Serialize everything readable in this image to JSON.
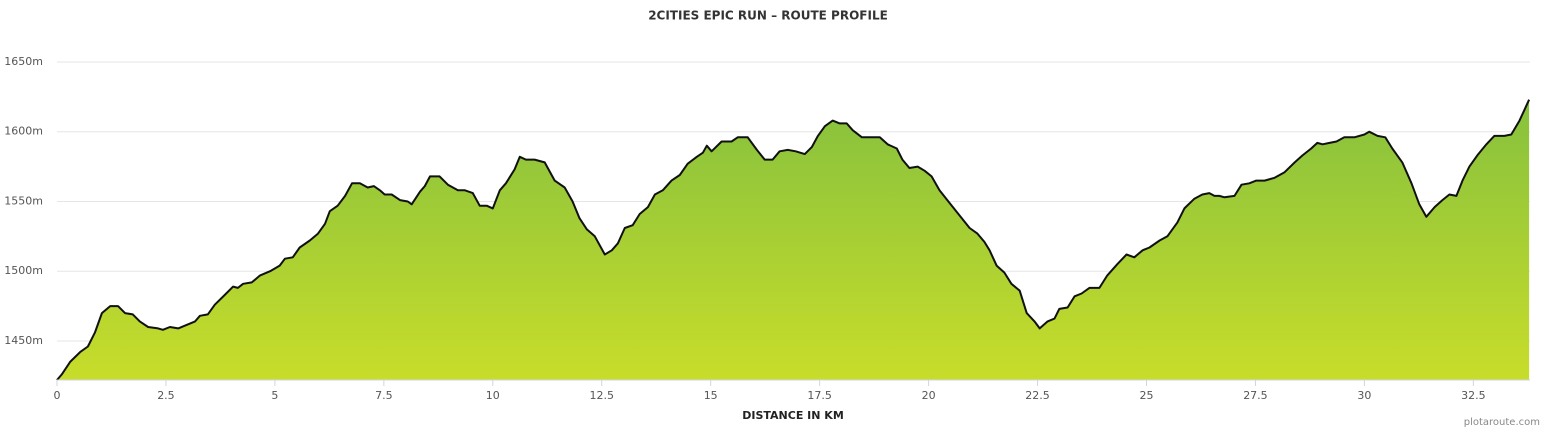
{
  "chart_data": {
    "type": "area",
    "title": "2CITIES EPIC RUN – ROUTE PROFILE",
    "x_label": "DISTANCE IN KM",
    "credit": "plotaroute.com",
    "x": [
      0,
      0.11,
      0.3,
      0.53,
      0.71,
      0.87,
      1.03,
      1.22,
      1.4,
      1.56,
      1.74,
      1.9,
      2.09,
      2.32,
      2.43,
      2.59,
      2.78,
      2.94,
      3.17,
      3.28,
      3.46,
      3.62,
      3.85,
      4.04,
      4.15,
      4.27,
      4.47,
      4.66,
      4.89,
      5.11,
      5.23,
      5.41,
      5.57,
      5.8,
      5.99,
      6.15,
      6.26,
      6.44,
      6.61,
      6.77,
      6.95,
      7.13,
      7.27,
      7.41,
      7.52,
      7.68,
      7.87,
      8.05,
      8.14,
      8.33,
      8.44,
      8.56,
      8.78,
      8.97,
      9.2,
      9.36,
      9.54,
      9.7,
      9.86,
      10,
      10.16,
      10.3,
      10.5,
      10.62,
      10.76,
      10.96,
      11.19,
      11.42,
      11.65,
      11.83,
      11.99,
      12.16,
      12.34,
      12.57,
      12.73,
      12.87,
      13.03,
      13.21,
      13.37,
      13.56,
      13.72,
      13.9,
      14.1,
      14.29,
      14.47,
      14.68,
      14.82,
      14.91,
      15.02,
      15.25,
      15.48,
      15.62,
      15.85,
      16.06,
      16.24,
      16.42,
      16.58,
      16.77,
      16.95,
      17.16,
      17.32,
      17.46,
      17.62,
      17.8,
      17.96,
      18.12,
      18.26,
      18.47,
      18.65,
      18.88,
      19.06,
      19.27,
      19.4,
      19.56,
      19.75,
      19.91,
      20.07,
      20.25,
      20.48,
      20.71,
      20.94,
      21.12,
      21.28,
      21.4,
      21.56,
      21.74,
      21.9,
      22.09,
      22.25,
      22.43,
      22.55,
      22.73,
      22.89,
      23,
      23.19,
      23.35,
      23.51,
      23.69,
      23.92,
      24.1,
      24.33,
      24.54,
      24.72,
      24.91,
      25.07,
      25.3,
      25.48,
      25.71,
      25.87,
      26.1,
      26.28,
      26.44,
      26.56,
      26.67,
      26.79,
      27.02,
      27.18,
      27.36,
      27.52,
      27.71,
      27.94,
      28.17,
      28.4,
      28.58,
      28.78,
      28.92,
      29.04,
      29.2,
      29.36,
      29.54,
      29.77,
      30,
      30.11,
      30.3,
      30.48,
      30.64,
      30.87,
      31.08,
      31.26,
      31.42,
      31.61,
      31.79,
      31.95,
      32.11,
      32.25,
      32.41,
      32.59,
      32.8,
      32.98,
      33.21,
      33.37,
      33.56,
      33.78
    ],
    "values": [
      1422,
      1426,
      1435,
      1442,
      1446,
      1456,
      1470,
      1475,
      1475,
      1470,
      1469,
      1464,
      1460,
      1459,
      1458,
      1460,
      1459,
      1461,
      1464,
      1468,
      1469,
      1476,
      1483,
      1489,
      1488,
      1491,
      1492,
      1497,
      1500,
      1504,
      1509,
      1510,
      1517,
      1522,
      1527,
      1534,
      1543,
      1547,
      1554,
      1563,
      1563,
      1560,
      1561,
      1558,
      1555,
      1555,
      1551,
      1550,
      1548,
      1557,
      1561,
      1568,
      1568,
      1562,
      1558,
      1558,
      1556,
      1547,
      1547,
      1545,
      1558,
      1563,
      1573,
      1582,
      1580,
      1580,
      1578,
      1565,
      1560,
      1550,
      1538,
      1530,
      1525,
      1512,
      1515,
      1520,
      1531,
      1533,
      1541,
      1546,
      1555,
      1558,
      1565,
      1569,
      1577,
      1582,
      1585,
      1590,
      1586,
      1593,
      1593,
      1596,
      1596,
      1587,
      1580,
      1580,
      1586,
      1587,
      1586,
      1584,
      1589,
      1597,
      1604,
      1608,
      1606,
      1606,
      1601,
      1596,
      1596,
      1596,
      1591,
      1588,
      1580,
      1574,
      1575,
      1572,
      1568,
      1558,
      1549,
      1540,
      1531,
      1527,
      1521,
      1515,
      1504,
      1499,
      1491,
      1486,
      1470,
      1464,
      1459,
      1464,
      1466,
      1473,
      1474,
      1482,
      1484,
      1488,
      1488,
      1497,
      1505,
      1512,
      1510,
      1515,
      1517,
      1522,
      1525,
      1535,
      1545,
      1552,
      1555,
      1556,
      1554,
      1554,
      1553,
      1554,
      1562,
      1563,
      1565,
      1565,
      1567,
      1571,
      1578,
      1583,
      1588,
      1592,
      1591,
      1592,
      1593,
      1596,
      1596,
      1598,
      1600,
      1597,
      1596,
      1588,
      1578,
      1563,
      1548,
      1539,
      1546,
      1551,
      1555,
      1554,
      1565,
      1575,
      1583,
      1591,
      1597,
      1597,
      1598,
      1608,
      1623
    ],
    "xlim": [
      0,
      33.8
    ],
    "ylim": [
      1422,
      1650
    ],
    "xticks": [
      0,
      2.5,
      5,
      7.5,
      10,
      12.5,
      15,
      17.5,
      20,
      22.5,
      25,
      27.5,
      30,
      32.5
    ],
    "yticks": [
      {
        "value": 1450,
        "label": "1450m"
      },
      {
        "value": 1500,
        "label": "1500m"
      },
      {
        "value": 1550,
        "label": "1550m"
      },
      {
        "value": 1600,
        "label": "1600m"
      },
      {
        "value": 1650,
        "label": "1650m"
      }
    ],
    "grid": true,
    "line_color": "#111111",
    "fill_colors": [
      "#86c13e",
      "#c8dd2a"
    ]
  }
}
